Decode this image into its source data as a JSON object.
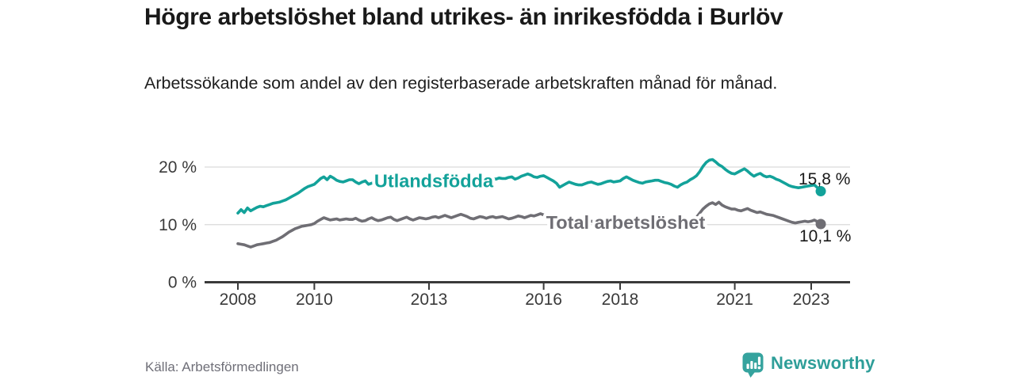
{
  "header": {
    "title": "Högre arbetslöshet bland utrikes- än inrikesfödda i Burlöv",
    "subtitle": "Arbetssökande som andel av den registerbaserade arbetskraften månad för månad."
  },
  "chart_data": {
    "type": "line",
    "title": "Högre arbetslöshet bland utrikes- än inrikesfödda i Burlöv",
    "x_unit": "month",
    "x_start": "2008-01",
    "x_end": "2023-04",
    "x_ticks": [
      2008,
      2010,
      2013,
      2016,
      2018,
      2021,
      2023
    ],
    "y_ticks": [
      0,
      10,
      20
    ],
    "y_tick_suffix": " %",
    "ylim": [
      0,
      22
    ],
    "grid": "horizontal",
    "legend_position": "inline-on-line",
    "axis_color": "#3a3a3a",
    "grid_color": "#d9d9d9",
    "tick_label_color": "#3a3a3a",
    "end_label_color": "#191919",
    "series": [
      {
        "name": "Total arbetslöshet",
        "color": "#6f6e74",
        "end_label": "10,1 %",
        "end_value": 10.1,
        "values": [
          6.7,
          6.6,
          6.5,
          6.3,
          6.1,
          6.3,
          6.5,
          6.6,
          6.7,
          6.8,
          6.9,
          7.1,
          7.3,
          7.6,
          7.9,
          8.3,
          8.7,
          9.0,
          9.3,
          9.5,
          9.7,
          9.8,
          9.9,
          10.0,
          10.2,
          10.6,
          10.9,
          11.2,
          11.0,
          10.8,
          10.9,
          11.0,
          10.8,
          10.9,
          11.0,
          10.9,
          10.9,
          11.1,
          10.8,
          10.6,
          10.7,
          11.0,
          11.2,
          10.9,
          10.7,
          10.8,
          11.0,
          11.2,
          11.3,
          10.9,
          10.7,
          10.9,
          11.1,
          11.3,
          11.0,
          10.8,
          11.0,
          11.2,
          11.1,
          11.0,
          11.1,
          11.3,
          11.4,
          11.2,
          11.4,
          11.6,
          11.4,
          11.2,
          11.4,
          11.6,
          11.8,
          11.6,
          11.4,
          11.1,
          11.0,
          11.2,
          11.4,
          11.3,
          11.1,
          11.3,
          11.4,
          11.2,
          11.3,
          11.4,
          11.2,
          11.0,
          11.1,
          11.3,
          11.5,
          11.4,
          11.2,
          11.4,
          11.6,
          11.5,
          11.7,
          11.9,
          11.7,
          11.5,
          11.3,
          11.2,
          11.0,
          10.9,
          10.8,
          10.9,
          11.0,
          10.9,
          10.8,
          10.7,
          10.7,
          10.6,
          10.5,
          10.6,
          10.5,
          10.4,
          10.5,
          10.6,
          10.5,
          10.4,
          10.5,
          10.4,
          10.4,
          10.5,
          10.4,
          10.3,
          10.2,
          10.3,
          10.2,
          10.1,
          10.2,
          10.3,
          10.2,
          10.3,
          10.2,
          10.1,
          10.0,
          10.1,
          10.0,
          9.9,
          10.0,
          10.1,
          10.2,
          10.3,
          10.5,
          10.8,
          11.3,
          12.0,
          12.7,
          13.2,
          13.6,
          13.8,
          13.5,
          13.9,
          13.4,
          13.1,
          12.9,
          12.7,
          12.7,
          12.5,
          12.4,
          12.6,
          12.8,
          12.5,
          12.3,
          12.1,
          12.2,
          12.0,
          11.8,
          11.7,
          11.6,
          11.4,
          11.2,
          11.0,
          10.8,
          10.6,
          10.4,
          10.3,
          10.4,
          10.5,
          10.6,
          10.5,
          10.6,
          10.8,
          10.5,
          10.1
        ]
      },
      {
        "name": "Utlandsfödda",
        "color": "#13a29a",
        "end_label": "15,8 %",
        "end_value": 15.8,
        "values": [
          12.0,
          12.6,
          12.1,
          12.9,
          12.4,
          12.7,
          13.0,
          13.2,
          13.1,
          13.3,
          13.5,
          13.7,
          13.8,
          13.9,
          14.1,
          14.3,
          14.6,
          14.9,
          15.2,
          15.5,
          15.9,
          16.3,
          16.6,
          16.8,
          17.0,
          17.5,
          18.0,
          18.3,
          17.8,
          18.4,
          18.1,
          17.7,
          17.5,
          17.4,
          17.6,
          17.8,
          17.8,
          17.4,
          17.1,
          17.4,
          17.6,
          17.0,
          17.2,
          17.4,
          17.1,
          16.9,
          17.1,
          17.3,
          17.2,
          17.0,
          16.8,
          17.0,
          17.2,
          17.1,
          16.9,
          17.1,
          17.3,
          17.4,
          17.2,
          17.3,
          17.4,
          17.5,
          17.3,
          17.5,
          17.7,
          17.6,
          17.4,
          17.5,
          17.6,
          17.4,
          17.3,
          17.5,
          17.6,
          17.4,
          17.5,
          17.7,
          18.1,
          17.7,
          18.2,
          17.8,
          18.0,
          17.9,
          18.1,
          18.0,
          18.0,
          18.2,
          18.3,
          17.9,
          18.1,
          18.4,
          18.6,
          18.8,
          18.6,
          18.3,
          18.2,
          18.4,
          18.5,
          18.2,
          17.9,
          17.6,
          17.2,
          16.5,
          16.8,
          17.1,
          17.4,
          17.2,
          17.0,
          16.9,
          16.9,
          17.1,
          17.3,
          17.4,
          17.2,
          17.0,
          17.1,
          17.3,
          17.5,
          17.6,
          17.4,
          17.5,
          17.6,
          18.0,
          18.3,
          18.0,
          17.7,
          17.5,
          17.3,
          17.2,
          17.4,
          17.5,
          17.6,
          17.7,
          17.7,
          17.5,
          17.3,
          17.2,
          17.0,
          16.7,
          16.5,
          16.9,
          17.2,
          17.4,
          17.8,
          18.1,
          18.5,
          19.2,
          20.1,
          20.8,
          21.2,
          21.3,
          20.9,
          20.4,
          20.1,
          19.6,
          19.2,
          18.9,
          18.8,
          19.1,
          19.4,
          19.7,
          19.3,
          18.8,
          18.4,
          18.7,
          18.9,
          18.5,
          18.3,
          18.4,
          18.2,
          17.9,
          17.7,
          17.4,
          17.1,
          16.8,
          16.6,
          16.5,
          16.4,
          16.5,
          16.6,
          16.7,
          16.8,
          16.9,
          16.4,
          15.8
        ]
      }
    ]
  },
  "footer": {
    "source": "Källa: Arbetsförmedlingen",
    "brand": "Newsworthy",
    "brand_color": "#2e9e99"
  }
}
